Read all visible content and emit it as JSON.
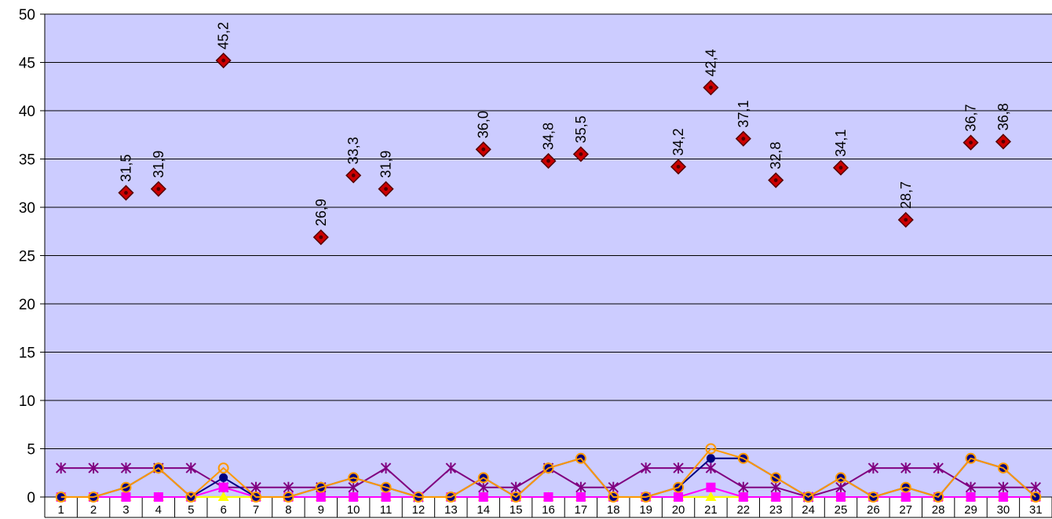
{
  "chart_data": {
    "type": "line",
    "categories": [
      "1",
      "2",
      "3",
      "4",
      "5",
      "6",
      "7",
      "8",
      "9",
      "10",
      "11",
      "12",
      "13",
      "14",
      "15",
      "16",
      "17",
      "18",
      "19",
      "20",
      "21",
      "22",
      "23",
      "24",
      "25",
      "26",
      "27",
      "28",
      "29",
      "30",
      "31"
    ],
    "ylim": [
      0,
      50
    ],
    "yticks": [
      "0",
      "5",
      "10",
      "15",
      "20",
      "25",
      "30",
      "35",
      "40",
      "45",
      "50"
    ],
    "grid": true,
    "legend": "none",
    "plot_background": "#ccccff",
    "series": [
      {
        "marker": "diamond",
        "color": "#cc0000",
        "line": false,
        "show_labels": true,
        "values": [
          null,
          null,
          31.5,
          31.9,
          null,
          45.2,
          null,
          null,
          26.9,
          33.3,
          31.9,
          null,
          null,
          36.0,
          null,
          34.8,
          35.5,
          null,
          null,
          34.2,
          42.4,
          37.1,
          32.8,
          null,
          34.1,
          null,
          28.7,
          null,
          36.7,
          36.8,
          null
        ],
        "labels": [
          null,
          null,
          "31,5",
          "31,9",
          null,
          "45,2",
          null,
          null,
          "26,9",
          "33,3",
          "31,9",
          null,
          null,
          "36,0",
          null,
          "34,8",
          "35,5",
          null,
          null,
          "34,2",
          "42,4",
          "37,1",
          "32,8",
          null,
          "34,1",
          null,
          "28,7",
          null,
          "36,7",
          "36,8",
          null
        ]
      },
      {
        "marker": "star",
        "color": "#800080",
        "line": true,
        "values": [
          3,
          3,
          3,
          3,
          3,
          1,
          1,
          1,
          1,
          1,
          3,
          0,
          3,
          1,
          1,
          3,
          1,
          1,
          3,
          3,
          3,
          1,
          1,
          0,
          1,
          3,
          3,
          3,
          1,
          1,
          1
        ]
      },
      {
        "marker": "triangle",
        "color": "#ffff00",
        "line": true,
        "values": [
          0,
          0,
          0,
          0,
          0,
          0,
          0,
          0,
          0,
          0,
          0,
          0,
          0,
          0,
          0,
          0,
          0,
          0,
          0,
          0,
          0,
          0,
          0,
          0,
          0,
          0,
          0,
          0,
          0,
          0,
          0
        ]
      },
      {
        "marker": "square",
        "color": "#ff00ff",
        "line": true,
        "values": [
          0,
          0,
          0,
          0,
          0,
          1,
          0,
          0,
          0,
          0,
          0,
          0,
          0,
          0,
          0,
          0,
          0,
          0,
          0,
          0,
          1,
          0,
          0,
          0,
          0,
          0,
          0,
          0,
          0,
          0,
          0
        ]
      },
      {
        "marker": "dot",
        "color": "#000080",
        "line": true,
        "values": [
          0,
          0,
          1,
          3,
          0,
          2,
          0,
          0,
          1,
          2,
          1,
          0,
          0,
          2,
          0,
          3,
          4,
          0,
          0,
          1,
          4,
          4,
          2,
          0,
          2,
          0,
          1,
          0,
          4,
          3,
          0
        ]
      },
      {
        "marker": "circle",
        "color": "#ff9900",
        "line": true,
        "values": [
          0,
          0,
          1,
          3,
          0,
          3,
          0,
          0,
          1,
          2,
          1,
          0,
          0,
          2,
          0,
          3,
          4,
          0,
          0,
          1,
          5,
          4,
          2,
          0,
          2,
          0,
          1,
          0,
          4,
          3,
          0
        ]
      }
    ]
  }
}
